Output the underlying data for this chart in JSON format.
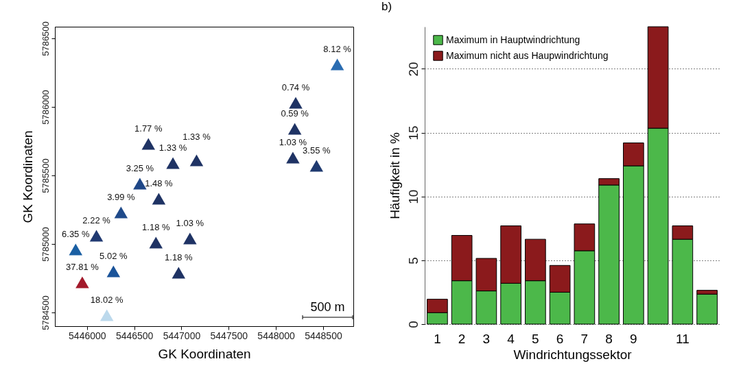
{
  "chart_data": [
    {
      "type": "scatter",
      "xlabel": "GK Koordinaten",
      "ylabel": "GK Koordinaten",
      "marker": "triangle",
      "grid": false,
      "xlim": [
        5445660,
        5448820
      ],
      "ylim": [
        5784400,
        5786585
      ],
      "xticks": [
        5446000,
        5446500,
        5447000,
        5447500,
        5448000,
        5448500
      ],
      "yticks": [
        5784500,
        5785000,
        5785500,
        5786000,
        5786500
      ],
      "annotations": [
        "500 m",
        {
          "text": "8.12 %",
          "x": 5448650,
          "y": 5786310
        },
        {
          "text": "0.74 %",
          "x": 5448210,
          "y": 5786030
        },
        {
          "text": "0.59 %",
          "x": 5448200,
          "y": 5785840
        },
        {
          "text": "1.03 %",
          "x": 5448180,
          "y": 5785630
        },
        {
          "text": "3.55 %",
          "x": 5448430,
          "y": 5785570
        },
        {
          "text": "1.77 %",
          "x": 5446650,
          "y": 5785730
        },
        {
          "text": "1.33 %",
          "x": 5446910,
          "y": 5785590
        },
        {
          "text": "1.33 %",
          "x": 5447160,
          "y": 5785610
        },
        {
          "text": "3.25 %",
          "x": 5446560,
          "y": 5785440
        },
        {
          "text": "1.48 %",
          "x": 5446760,
          "y": 5785330
        },
        {
          "text": "3.99 %",
          "x": 5446360,
          "y": 5785230
        },
        {
          "text": "2.22 %",
          "x": 5446100,
          "y": 5785060
        },
        {
          "text": "6.35 %",
          "x": 5445880,
          "y": 5784960
        },
        {
          "text": "1.18 %",
          "x": 5446730,
          "y": 5785010
        },
        {
          "text": "1.03 %",
          "x": 5447090,
          "y": 5785040
        },
        {
          "text": "5.02 %",
          "x": 5446280,
          "y": 5784800
        },
        {
          "text": "1.18 %",
          "x": 5446970,
          "y": 5784790
        },
        {
          "text": "37.81 %",
          "x": 5445950,
          "y": 5784720
        },
        {
          "text": "18.02 %",
          "x": 5446210,
          "y": 5784480
        }
      ],
      "x": [
        5448650,
        5448210,
        5448200,
        5448180,
        5448430,
        5446650,
        5446910,
        5447160,
        5446560,
        5446760,
        5446360,
        5446100,
        5445880,
        5446730,
        5447090,
        5446280,
        5446970,
        5445950,
        5446210
      ],
      "values": [
        5786310,
        5786030,
        5785840,
        5785630,
        5785570,
        5785730,
        5785590,
        5785610,
        5785440,
        5785330,
        5785230,
        5785060,
        5784960,
        5785010,
        5785040,
        5784800,
        5784790,
        5784720,
        5784480
      ],
      "colors": [
        "#2a6cb1",
        "#1f3364",
        "#1f3364",
        "#1f3364",
        "#1f3a70",
        "#1f3364",
        "#1f3364",
        "#1f3364",
        "#1f4787",
        "#1f3364",
        "#1f4a8a",
        "#213a72",
        "#1a5fa3",
        "#1f3364",
        "#1f3364",
        "#1a5399",
        "#1f3364",
        "#a31a2b",
        "#bcd9ec"
      ]
    },
    {
      "type": "bar",
      "title": "b)",
      "xlabel": "Windrichtungssektor",
      "ylabel": "Häufigkeit in %",
      "stacked": true,
      "grid": "y",
      "legend": "top left",
      "ylim": [
        0,
        23.3
      ],
      "yticks": [
        0,
        5,
        10,
        15,
        20
      ],
      "categories": [
        "1",
        "2",
        "3",
        "4",
        "5",
        "6",
        "7",
        "8",
        "9",
        null,
        "11",
        null
      ],
      "series": [
        {
          "name": "Maximum in Hauptwindrichtung",
          "color": "#4cb84a",
          "values": [
            0.9,
            3.4,
            2.6,
            3.2,
            3.4,
            2.5,
            5.75,
            10.9,
            12.4,
            15.35,
            6.65,
            2.35
          ]
        },
        {
          "name": "Maximum nicht aus Haupwindrichtung",
          "color": "#8b1a1c",
          "values": [
            1.05,
            3.55,
            2.55,
            4.5,
            3.25,
            2.1,
            2.1,
            0.5,
            1.8,
            7.95,
            1.05,
            0.3
          ]
        }
      ]
    }
  ]
}
